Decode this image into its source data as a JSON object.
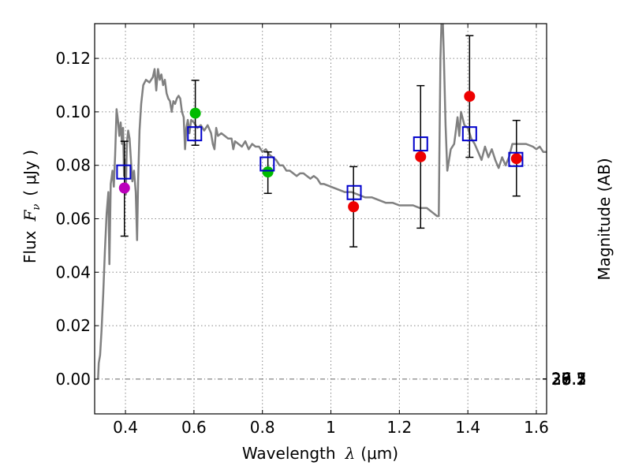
{
  "chart_data": {
    "type": "scatter",
    "xlabel": "Wavelength",
    "xlabel_symbol": "λ",
    "xlabel_unit": "(μm)",
    "ylabel_left": "Flux",
    "ylabel_symbol": "F",
    "ylabel_subscript": "ν",
    "ylabel_unit": "( μJy )",
    "ylabel_right": "Magnitude (AB)",
    "xlim": [
      0.31,
      1.63
    ],
    "ylim": [
      -0.013,
      0.133
    ],
    "x_ticks": [
      {
        "value": 0.4,
        "label": "0.4"
      },
      {
        "value": 0.6,
        "label": "0.6"
      },
      {
        "value": 0.8,
        "label": "0.8"
      },
      {
        "value": 1.0,
        "label": "1"
      },
      {
        "value": 1.2,
        "label": "1.2"
      },
      {
        "value": 1.4,
        "label": "1.4"
      },
      {
        "value": 1.6,
        "label": "1.6"
      }
    ],
    "y_ticks": [
      {
        "value": 0.0,
        "label": "0.00"
      },
      {
        "value": 0.02,
        "label": "0.02"
      },
      {
        "value": 0.04,
        "label": "0.04"
      },
      {
        "value": 0.06,
        "label": "0.06"
      },
      {
        "value": 0.08,
        "label": "0.08"
      },
      {
        "value": 0.1,
        "label": "0.10"
      },
      {
        "value": 0.12,
        "label": "0.12"
      }
    ],
    "mag_ticks": [
      {
        "value": 26.1,
        "label": "26.1"
      },
      {
        "value": 26.3,
        "label": "26.3"
      },
      {
        "value": 26.5,
        "label": "26.5"
      },
      {
        "value": 26.7,
        "label": "26.7"
      },
      {
        "value": 27,
        "label": "27"
      },
      {
        "value": 27.2,
        "label": "27.2"
      },
      {
        "value": 27.5,
        "label": "27.5"
      },
      {
        "value": 28,
        "label": "28"
      },
      {
        "value": 28.5,
        "label": "28.5"
      },
      {
        "value": 29,
        "label": "29"
      },
      {
        "value": 30,
        "label": "30"
      }
    ],
    "grid": true,
    "zero_line": true,
    "colors": {
      "sed": "#808080",
      "model_box": "#0000cc",
      "errorbar": "#000000",
      "purple": "#bb00bb",
      "green": "#00bb00",
      "red": "#ee0000"
    },
    "sed_model": {
      "name": "SED model",
      "points": [
        [
          0.32,
          0.0
        ],
        [
          0.322,
          0.006
        ],
        [
          0.326,
          0.009
        ],
        [
          0.33,
          0.018
        ],
        [
          0.335,
          0.032
        ],
        [
          0.34,
          0.048
        ],
        [
          0.345,
          0.062
        ],
        [
          0.35,
          0.07
        ],
        [
          0.353,
          0.043
        ],
        [
          0.357,
          0.073
        ],
        [
          0.362,
          0.078
        ],
        [
          0.366,
          0.072
        ],
        [
          0.37,
          0.084
        ],
        [
          0.374,
          0.101
        ],
        [
          0.378,
          0.097
        ],
        [
          0.382,
          0.091
        ],
        [
          0.386,
          0.096
        ],
        [
          0.39,
          0.088
        ],
        [
          0.393,
          0.094
        ],
        [
          0.396,
          0.076
        ],
        [
          0.398,
          0.082
        ],
        [
          0.401,
          0.069
        ],
        [
          0.404,
          0.088
        ],
        [
          0.408,
          0.093
        ],
        [
          0.412,
          0.09
        ],
        [
          0.416,
          0.082
        ],
        [
          0.42,
          0.074
        ],
        [
          0.425,
          0.078
        ],
        [
          0.43,
          0.07
        ],
        [
          0.434,
          0.052
        ],
        [
          0.437,
          0.074
        ],
        [
          0.441,
          0.093
        ],
        [
          0.446,
          0.103
        ],
        [
          0.452,
          0.11
        ],
        [
          0.46,
          0.112
        ],
        [
          0.47,
          0.111
        ],
        [
          0.48,
          0.113
        ],
        [
          0.485,
          0.116
        ],
        [
          0.49,
          0.108
        ],
        [
          0.495,
          0.116
        ],
        [
          0.5,
          0.112
        ],
        [
          0.505,
          0.114
        ],
        [
          0.51,
          0.11
        ],
        [
          0.515,
          0.112
        ],
        [
          0.52,
          0.107
        ],
        [
          0.525,
          0.105
        ],
        [
          0.53,
          0.104
        ],
        [
          0.535,
          0.1
        ],
        [
          0.54,
          0.104
        ],
        [
          0.545,
          0.103
        ],
        [
          0.55,
          0.105
        ],
        [
          0.555,
          0.106
        ],
        [
          0.56,
          0.105
        ],
        [
          0.565,
          0.1
        ],
        [
          0.57,
          0.098
        ],
        [
          0.574,
          0.086
        ],
        [
          0.578,
          0.094
        ],
        [
          0.582,
          0.097
        ],
        [
          0.587,
          0.092
        ],
        [
          0.592,
          0.097
        ],
        [
          0.6,
          0.096
        ],
        [
          0.61,
          0.094
        ],
        [
          0.62,
          0.095
        ],
        [
          0.63,
          0.093
        ],
        [
          0.64,
          0.095
        ],
        [
          0.65,
          0.092
        ],
        [
          0.655,
          0.088
        ],
        [
          0.66,
          0.086
        ],
        [
          0.665,
          0.094
        ],
        [
          0.67,
          0.091
        ],
        [
          0.68,
          0.092
        ],
        [
          0.69,
          0.091
        ],
        [
          0.7,
          0.09
        ],
        [
          0.71,
          0.09
        ],
        [
          0.715,
          0.086
        ],
        [
          0.72,
          0.089
        ],
        [
          0.73,
          0.088
        ],
        [
          0.74,
          0.087
        ],
        [
          0.75,
          0.089
        ],
        [
          0.76,
          0.086
        ],
        [
          0.77,
          0.088
        ],
        [
          0.78,
          0.087
        ],
        [
          0.79,
          0.087
        ],
        [
          0.8,
          0.085
        ],
        [
          0.81,
          0.086
        ],
        [
          0.82,
          0.084
        ],
        [
          0.83,
          0.083
        ],
        [
          0.84,
          0.082
        ],
        [
          0.85,
          0.08
        ],
        [
          0.86,
          0.08
        ],
        [
          0.87,
          0.078
        ],
        [
          0.88,
          0.078
        ],
        [
          0.89,
          0.077
        ],
        [
          0.9,
          0.076
        ],
        [
          0.91,
          0.077
        ],
        [
          0.92,
          0.077
        ],
        [
          0.93,
          0.076
        ],
        [
          0.94,
          0.075
        ],
        [
          0.95,
          0.076
        ],
        [
          0.96,
          0.075
        ],
        [
          0.97,
          0.073
        ],
        [
          0.98,
          0.073
        ],
        [
          1.0,
          0.072
        ],
        [
          1.02,
          0.071
        ],
        [
          1.04,
          0.07
        ],
        [
          1.06,
          0.07
        ],
        [
          1.08,
          0.069
        ],
        [
          1.1,
          0.068
        ],
        [
          1.12,
          0.068
        ],
        [
          1.14,
          0.067
        ],
        [
          1.16,
          0.066
        ],
        [
          1.18,
          0.066
        ],
        [
          1.2,
          0.065
        ],
        [
          1.22,
          0.065
        ],
        [
          1.24,
          0.065
        ],
        [
          1.26,
          0.064
        ],
        [
          1.28,
          0.064
        ],
        [
          1.3,
          0.062
        ],
        [
          1.31,
          0.061
        ],
        [
          1.315,
          0.061
        ],
        [
          1.317,
          0.085
        ],
        [
          1.32,
          0.12
        ],
        [
          1.323,
          0.133
        ],
        [
          1.327,
          0.133
        ],
        [
          1.33,
          0.12
        ],
        [
          1.335,
          0.095
        ],
        [
          1.34,
          0.078
        ],
        [
          1.345,
          0.082
        ],
        [
          1.35,
          0.086
        ],
        [
          1.36,
          0.088
        ],
        [
          1.37,
          0.098
        ],
        [
          1.375,
          0.091
        ],
        [
          1.38,
          0.1
        ],
        [
          1.39,
          0.095
        ],
        [
          1.4,
          0.094
        ],
        [
          1.41,
          0.09
        ],
        [
          1.42,
          0.088
        ],
        [
          1.43,
          0.085
        ],
        [
          1.44,
          0.082
        ],
        [
          1.45,
          0.087
        ],
        [
          1.46,
          0.083
        ],
        [
          1.47,
          0.086
        ],
        [
          1.48,
          0.082
        ],
        [
          1.49,
          0.079
        ],
        [
          1.5,
          0.083
        ],
        [
          1.51,
          0.08
        ],
        [
          1.52,
          0.083
        ],
        [
          1.53,
          0.088
        ],
        [
          1.55,
          0.088
        ],
        [
          1.57,
          0.088
        ],
        [
          1.59,
          0.087
        ],
        [
          1.6,
          0.086
        ],
        [
          1.61,
          0.087
        ],
        [
          1.62,
          0.085
        ],
        [
          1.63,
          0.085
        ]
      ]
    },
    "model_photometry": [
      {
        "x": 0.395,
        "y": 0.0775
      },
      {
        "x": 0.602,
        "y": 0.0918
      },
      {
        "x": 0.814,
        "y": 0.0805
      },
      {
        "x": 1.068,
        "y": 0.0698
      },
      {
        "x": 1.262,
        "y": 0.088
      },
      {
        "x": 1.405,
        "y": 0.0918
      },
      {
        "x": 1.54,
        "y": 0.0822
      }
    ],
    "observed": [
      {
        "x": 0.397,
        "y": 0.0715,
        "err_low": 0.0535,
        "err_high": 0.089,
        "color": "purple"
      },
      {
        "x": 0.604,
        "y": 0.0995,
        "err_low": 0.0875,
        "err_high": 0.1118,
        "color": "green"
      },
      {
        "x": 0.816,
        "y": 0.0775,
        "err_low": 0.0695,
        "err_high": 0.085,
        "color": "green"
      },
      {
        "x": 1.066,
        "y": 0.0645,
        "err_low": 0.0495,
        "err_high": 0.0795,
        "color": "red"
      },
      {
        "x": 1.262,
        "y": 0.0832,
        "err_low": 0.0565,
        "err_high": 0.1098,
        "color": "red"
      },
      {
        "x": 1.405,
        "y": 0.1058,
        "err_low": 0.083,
        "err_high": 0.1285,
        "color": "red"
      },
      {
        "x": 1.542,
        "y": 0.0825,
        "err_low": 0.0685,
        "err_high": 0.0968,
        "color": "red"
      }
    ]
  }
}
